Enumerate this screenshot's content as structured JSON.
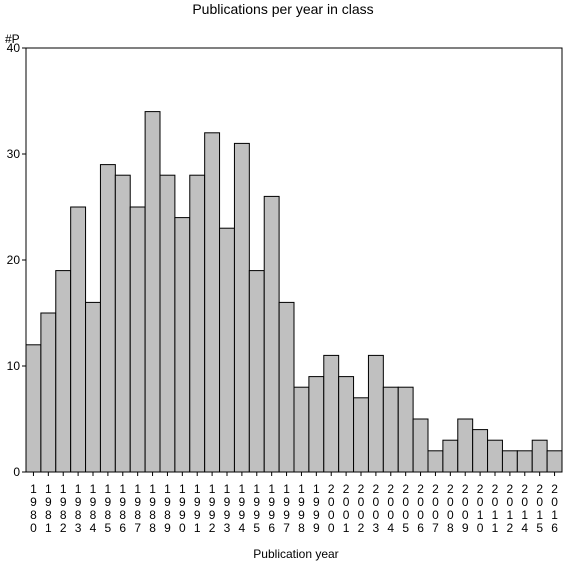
{
  "chart_data": {
    "type": "bar",
    "title": "Publications per year in class",
    "ylabel": "#P",
    "xlabel": "Publication year",
    "ylim": [
      0,
      40
    ],
    "yticks": [
      0,
      10,
      20,
      30,
      40
    ],
    "grid": false,
    "legend": "none",
    "bar_color": "#c0c0c0",
    "categories": [
      "1980",
      "1981",
      "1982",
      "1983",
      "1984",
      "1985",
      "1986",
      "1987",
      "1988",
      "1989",
      "1990",
      "1991",
      "1992",
      "1993",
      "1994",
      "1995",
      "1996",
      "1997",
      "1998",
      "1999",
      "2000",
      "2001",
      "2002",
      "2003",
      "2004",
      "2005",
      "2006",
      "2007",
      "2008",
      "2009",
      "2010",
      "2011",
      "2012",
      "2014",
      "2015",
      "2016"
    ],
    "values": [
      12,
      15,
      19,
      25,
      16,
      29,
      28,
      25,
      34,
      28,
      24,
      28,
      32,
      23,
      31,
      19,
      26,
      16,
      8,
      9,
      11,
      9,
      7,
      11,
      8,
      8,
      5,
      2,
      3,
      5,
      4,
      3,
      2,
      2,
      3,
      2
    ]
  }
}
